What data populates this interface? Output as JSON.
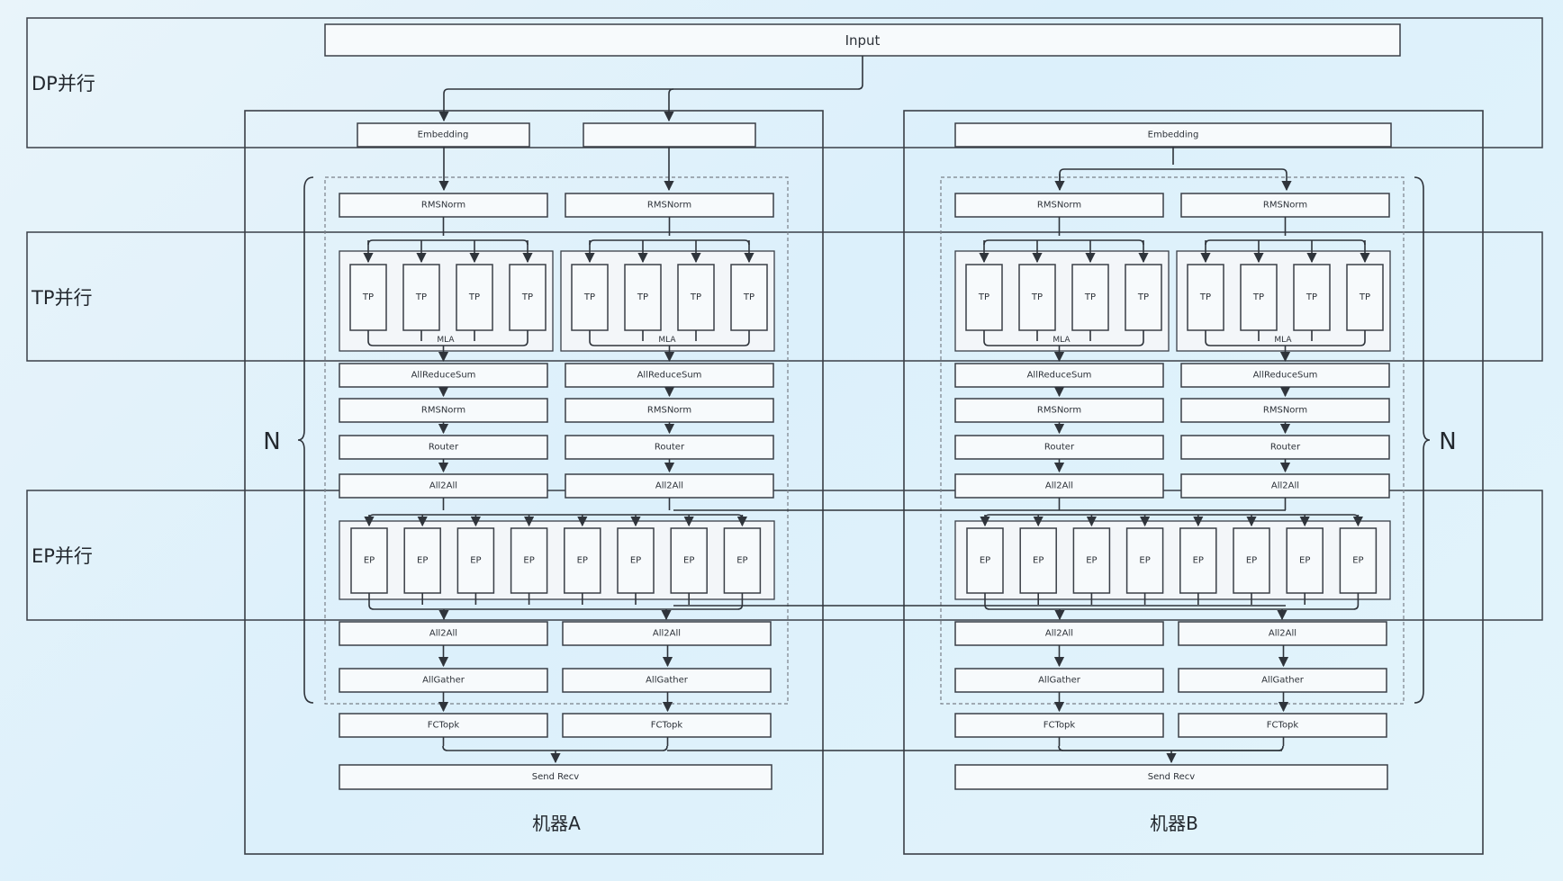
{
  "input": "Input",
  "bands": {
    "dp": "DP并行",
    "tp": "TP并行",
    "ep": "EP并行"
  },
  "repeat_label": "N",
  "machines": [
    {
      "label": "机器A",
      "columns": [
        {
          "embedding": "Embedding",
          "rmsnorm1": "RMSNorm",
          "tp_units": [
            "TP",
            "TP",
            "TP",
            "TP"
          ],
          "mla": "MLA",
          "allreduce": "AllReduceSum",
          "rmsnorm2": "RMSNorm",
          "router": "Router",
          "all2all_in": "All2All",
          "all2all_out": "All2All",
          "allgather": "AllGather",
          "fctopk": "FCTopk"
        },
        {
          "embedding": "",
          "rmsnorm1": "RMSNorm",
          "tp_units": [
            "TP",
            "TP",
            "TP",
            "TP"
          ],
          "mla": "MLA",
          "allreduce": "AllReduceSum",
          "rmsnorm2": "RMSNorm",
          "router": "Router",
          "all2all_in": "All2All",
          "all2all_out": "All2All",
          "allgather": "AllGather",
          "fctopk": "FCTopk"
        }
      ],
      "ep_units": [
        "EP",
        "EP",
        "EP",
        "EP",
        "EP",
        "EP",
        "EP",
        "EP"
      ],
      "send_recv": "Send Recv"
    },
    {
      "label": "机器B",
      "embedding": "Embedding",
      "columns": [
        {
          "rmsnorm1": "RMSNorm",
          "tp_units": [
            "TP",
            "TP",
            "TP",
            "TP"
          ],
          "mla": "MLA",
          "allreduce": "AllReduceSum",
          "rmsnorm2": "RMSNorm",
          "router": "Router",
          "all2all_in": "All2All",
          "all2all_out": "All2All",
          "allgather": "AllGather",
          "fctopk": "FCTopk"
        },
        {
          "rmsnorm1": "RMSNorm",
          "tp_units": [
            "TP",
            "TP",
            "TP",
            "TP"
          ],
          "mla": "MLA",
          "allreduce": "AllReduceSum",
          "rmsnorm2": "RMSNorm",
          "router": "Router",
          "all2all_in": "All2All",
          "all2all_out": "All2All",
          "allgather": "AllGather",
          "fctopk": "FCTopk"
        }
      ],
      "ep_units": [
        "EP",
        "EP",
        "EP",
        "EP",
        "EP",
        "EP",
        "EP",
        "EP"
      ],
      "send_recv": "Send Recv"
    }
  ]
}
